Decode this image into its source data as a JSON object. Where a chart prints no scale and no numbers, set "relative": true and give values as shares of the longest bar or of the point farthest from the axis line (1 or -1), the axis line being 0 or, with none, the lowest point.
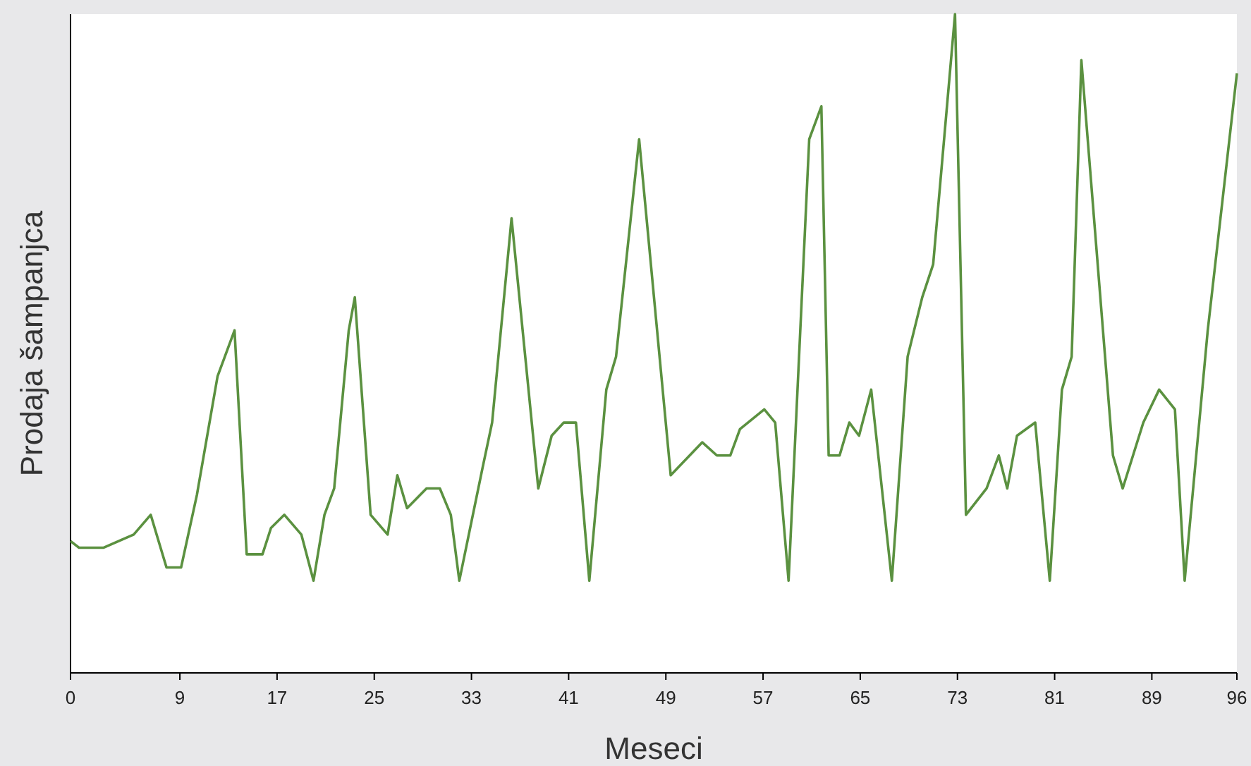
{
  "chart_data": {
    "type": "line",
    "xlabel": "Meseci",
    "ylabel": "Prodaja šampanjca",
    "relative": true,
    "xlim": [
      0,
      96
    ],
    "xticks": [
      0,
      9,
      17,
      25,
      33,
      41,
      49,
      57,
      65,
      73,
      81,
      89,
      96
    ],
    "grid": false,
    "marker": "none",
    "line_style": "solid",
    "series": [
      {
        "color": "#5b9140",
        "x": [
          0,
          0.7,
          2.7,
          5.2,
          6.6,
          7.9,
          9.1,
          10.4,
          12.1,
          13.5,
          14.5,
          15.8,
          16.5,
          17.6,
          19.0,
          20.0,
          20.9,
          21.7,
          22.9,
          23.4,
          24.7,
          26.1,
          26.9,
          27.7,
          29.3,
          30.4,
          31.3,
          32.0,
          33.9,
          34.7,
          36.3,
          38.5,
          39.6,
          40.6,
          41.6,
          42.7,
          44.1,
          44.9,
          46.8,
          49.4,
          52.0,
          53.2,
          54.3,
          55.1,
          57.1,
          58.0,
          59.1,
          60.8,
          61.8,
          62.4,
          63.3,
          64.1,
          64.9,
          65.9,
          67.6,
          68.9,
          70.1,
          71.0,
          72.8,
          73.7,
          75.4,
          76.4,
          77.1,
          77.9,
          79.4,
          80.6,
          81.6,
          82.4,
          83.2,
          85.8,
          86.6,
          88.3,
          89.6,
          90.9,
          91.7,
          93.6,
          96.0
        ],
        "values": [
          0.2,
          0.19,
          0.19,
          0.21,
          0.24,
          0.16,
          0.16,
          0.27,
          0.45,
          0.52,
          0.18,
          0.18,
          0.22,
          0.24,
          0.21,
          0.14,
          0.24,
          0.28,
          0.52,
          0.57,
          0.24,
          0.21,
          0.3,
          0.25,
          0.28,
          0.28,
          0.24,
          0.14,
          0.31,
          0.38,
          0.69,
          0.28,
          0.36,
          0.38,
          0.38,
          0.14,
          0.43,
          0.48,
          0.81,
          0.3,
          0.35,
          0.33,
          0.33,
          0.37,
          0.4,
          0.38,
          0.14,
          0.81,
          0.86,
          0.33,
          0.33,
          0.38,
          0.36,
          0.43,
          0.14,
          0.48,
          0.57,
          0.62,
          1,
          0.24,
          0.28,
          0.33,
          0.28,
          0.36,
          0.38,
          0.14,
          0.43,
          0.48,
          0.93,
          0.33,
          0.28,
          0.38,
          0.43,
          0.4,
          0.14,
          0.52,
          0.91
        ]
      }
    ]
  }
}
